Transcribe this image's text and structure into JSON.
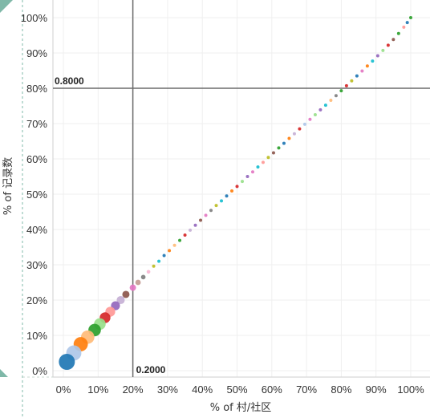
{
  "chart_data": {
    "type": "scatter",
    "title": "",
    "xlabel": "% of 村/社区",
    "ylabel": "% of 记录数",
    "xlim": [
      0,
      100
    ],
    "ylim": [
      0,
      100
    ],
    "x_ticks": [
      "0%",
      "10%",
      "20%",
      "30%",
      "40%",
      "50%",
      "60%",
      "70%",
      "80%",
      "90%",
      "100%"
    ],
    "y_ticks": [
      "0%",
      "10%",
      "20%",
      "30%",
      "40%",
      "50%",
      "60%",
      "70%",
      "80%",
      "90%",
      "100%"
    ],
    "grid": true,
    "legend": "none",
    "reference_lines": [
      {
        "axis": "x",
        "value": 20,
        "label": "0.2000"
      },
      {
        "axis": "y",
        "value": 80,
        "label": "0.8000"
      }
    ],
    "series": [
      {
        "points": [
          {
            "x": 1.0,
            "y": 2.5,
            "color": "#1f77b4"
          },
          {
            "x": 3.0,
            "y": 5.0,
            "color": "#aec7e8"
          },
          {
            "x": 5.0,
            "y": 7.5,
            "color": "#ff7f0e"
          },
          {
            "x": 7.0,
            "y": 9.5,
            "color": "#ffbb78"
          },
          {
            "x": 9.0,
            "y": 11.5,
            "color": "#2ca02c"
          },
          {
            "x": 10.5,
            "y": 13.2,
            "color": "#98df8a"
          },
          {
            "x": 12.0,
            "y": 15.0,
            "color": "#d62728"
          },
          {
            "x": 13.5,
            "y": 16.7,
            "color": "#ff9896"
          },
          {
            "x": 15.0,
            "y": 18.4,
            "color": "#9467bd"
          },
          {
            "x": 16.5,
            "y": 20.0,
            "color": "#c5b0d5"
          },
          {
            "x": 18.0,
            "y": 21.6,
            "color": "#8c564b"
          },
          {
            "x": 20.0,
            "y": 23.5,
            "color": "#e377c2"
          },
          {
            "x": 21.5,
            "y": 25.0,
            "color": "#c49c94"
          },
          {
            "x": 23.0,
            "y": 26.5,
            "color": "#7f7f7f"
          },
          {
            "x": 24.5,
            "y": 28.0,
            "color": "#f7b6d2"
          },
          {
            "x": 26.0,
            "y": 29.6,
            "color": "#bcbd22"
          },
          {
            "x": 27.5,
            "y": 31.0,
            "color": "#17becf"
          },
          {
            "x": 29.0,
            "y": 32.6,
            "color": "#1f77b4"
          },
          {
            "x": 30.5,
            "y": 34.0,
            "color": "#ff7f0e"
          },
          {
            "x": 32.0,
            "y": 35.5,
            "color": "#ffbb78"
          },
          {
            "x": 33.5,
            "y": 36.9,
            "color": "#2ca02c"
          },
          {
            "x": 35.0,
            "y": 38.4,
            "color": "#d62728"
          },
          {
            "x": 36.5,
            "y": 39.8,
            "color": "#c5b0d5"
          },
          {
            "x": 38.0,
            "y": 41.2,
            "color": "#9467bd"
          },
          {
            "x": 39.5,
            "y": 42.6,
            "color": "#8c564b"
          },
          {
            "x": 41.0,
            "y": 44.0,
            "color": "#e377c2"
          },
          {
            "x": 42.5,
            "y": 45.4,
            "color": "#7f7f7f"
          },
          {
            "x": 44.0,
            "y": 46.8,
            "color": "#bcbd22"
          },
          {
            "x": 45.5,
            "y": 48.1,
            "color": "#17becf"
          },
          {
            "x": 47.0,
            "y": 49.5,
            "color": "#1f77b4"
          },
          {
            "x": 48.5,
            "y": 50.9,
            "color": "#ff7f0e"
          },
          {
            "x": 50.0,
            "y": 52.2,
            "color": "#d62728"
          },
          {
            "x": 51.5,
            "y": 53.6,
            "color": "#98df8a"
          },
          {
            "x": 53.0,
            "y": 55.0,
            "color": "#9467bd"
          },
          {
            "x": 54.5,
            "y": 56.3,
            "color": "#e377c2"
          },
          {
            "x": 56.0,
            "y": 57.7,
            "color": "#17becf"
          },
          {
            "x": 57.5,
            "y": 59.0,
            "color": "#ff9896"
          },
          {
            "x": 59.0,
            "y": 60.4,
            "color": "#bcbd22"
          },
          {
            "x": 60.5,
            "y": 61.7,
            "color": "#8c564b"
          },
          {
            "x": 62.0,
            "y": 63.1,
            "color": "#2ca02c"
          },
          {
            "x": 63.5,
            "y": 64.4,
            "color": "#1f77b4"
          },
          {
            "x": 65.0,
            "y": 65.8,
            "color": "#ff7f0e"
          },
          {
            "x": 66.5,
            "y": 67.1,
            "color": "#c5b0d5"
          },
          {
            "x": 68.0,
            "y": 68.5,
            "color": "#d62728"
          },
          {
            "x": 69.5,
            "y": 69.8,
            "color": "#aec7e8"
          },
          {
            "x": 71.0,
            "y": 71.2,
            "color": "#e377c2"
          },
          {
            "x": 72.5,
            "y": 72.5,
            "color": "#98df8a"
          },
          {
            "x": 74.0,
            "y": 73.9,
            "color": "#9467bd"
          },
          {
            "x": 75.5,
            "y": 75.2,
            "color": "#17becf"
          },
          {
            "x": 77.0,
            "y": 76.6,
            "color": "#ffbb78"
          },
          {
            "x": 78.5,
            "y": 77.9,
            "color": "#7f7f7f"
          },
          {
            "x": 80.0,
            "y": 79.3,
            "color": "#2ca02c"
          },
          {
            "x": 81.5,
            "y": 80.7,
            "color": "#d62728"
          },
          {
            "x": 83.0,
            "y": 82.1,
            "color": "#bcbd22"
          },
          {
            "x": 84.5,
            "y": 83.5,
            "color": "#1f77b4"
          },
          {
            "x": 86.0,
            "y": 84.9,
            "color": "#e377c2"
          },
          {
            "x": 87.5,
            "y": 86.3,
            "color": "#ff7f0e"
          },
          {
            "x": 89.0,
            "y": 87.7,
            "color": "#17becf"
          },
          {
            "x": 90.5,
            "y": 89.2,
            "color": "#9467bd"
          },
          {
            "x": 92.0,
            "y": 90.7,
            "color": "#98df8a"
          },
          {
            "x": 93.5,
            "y": 92.2,
            "color": "#d62728"
          },
          {
            "x": 95.0,
            "y": 93.8,
            "color": "#8c564b"
          },
          {
            "x": 96.5,
            "y": 95.5,
            "color": "#2ca02c"
          },
          {
            "x": 98.0,
            "y": 97.3,
            "color": "#ff9896"
          },
          {
            "x": 99.0,
            "y": 98.6,
            "color": "#1f77b4"
          },
          {
            "x": 100.0,
            "y": 100.0,
            "color": "#2ca02c"
          }
        ]
      }
    ]
  }
}
